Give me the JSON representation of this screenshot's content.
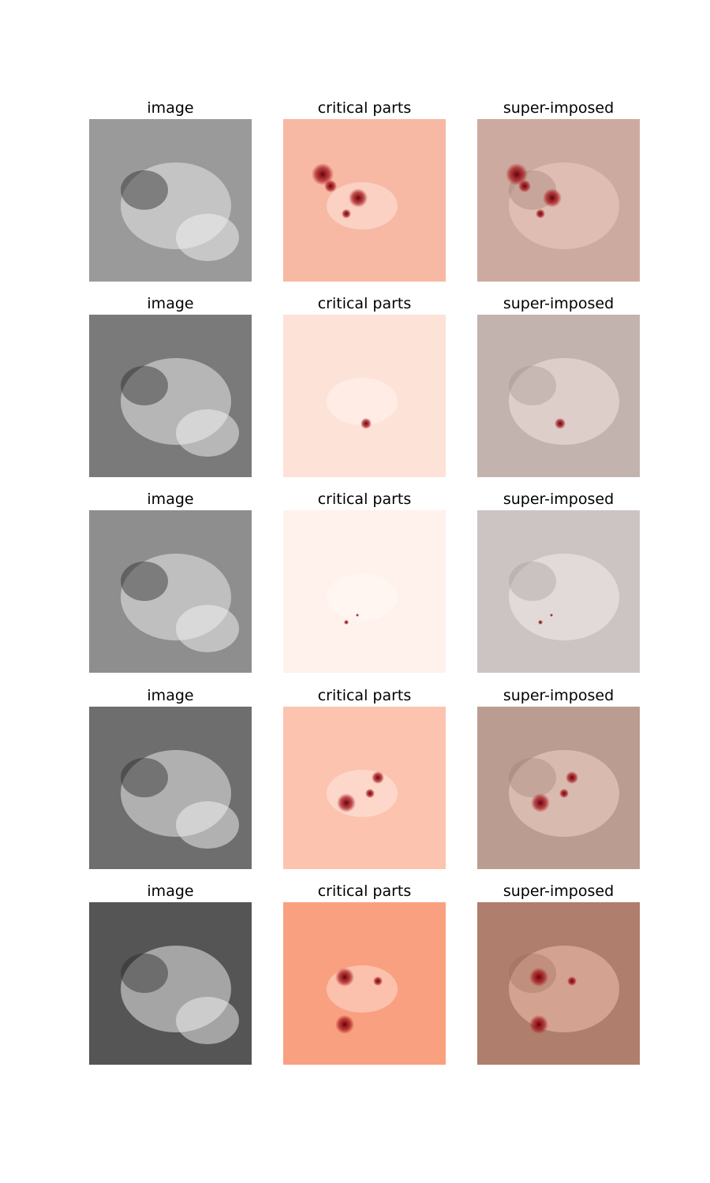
{
  "columns": [
    "image",
    "critical parts",
    "super-imposed"
  ],
  "rows": [
    {
      "heat_tint": "#f7b8a4",
      "image_tone": "#9a9a9a"
    },
    {
      "heat_tint": "#fde2d8",
      "image_tone": "#7a7a7a"
    },
    {
      "heat_tint": "#fff1ec",
      "image_tone": "#8e8e8e"
    },
    {
      "heat_tint": "#fcc3ae",
      "image_tone": "#6e6e6e"
    },
    {
      "heat_tint": "#f9a081",
      "image_tone": "#555555"
    }
  ],
  "colors": {
    "background": "#ffffff",
    "hot_spot": "#a50f15",
    "hot_core": "#67000d"
  }
}
